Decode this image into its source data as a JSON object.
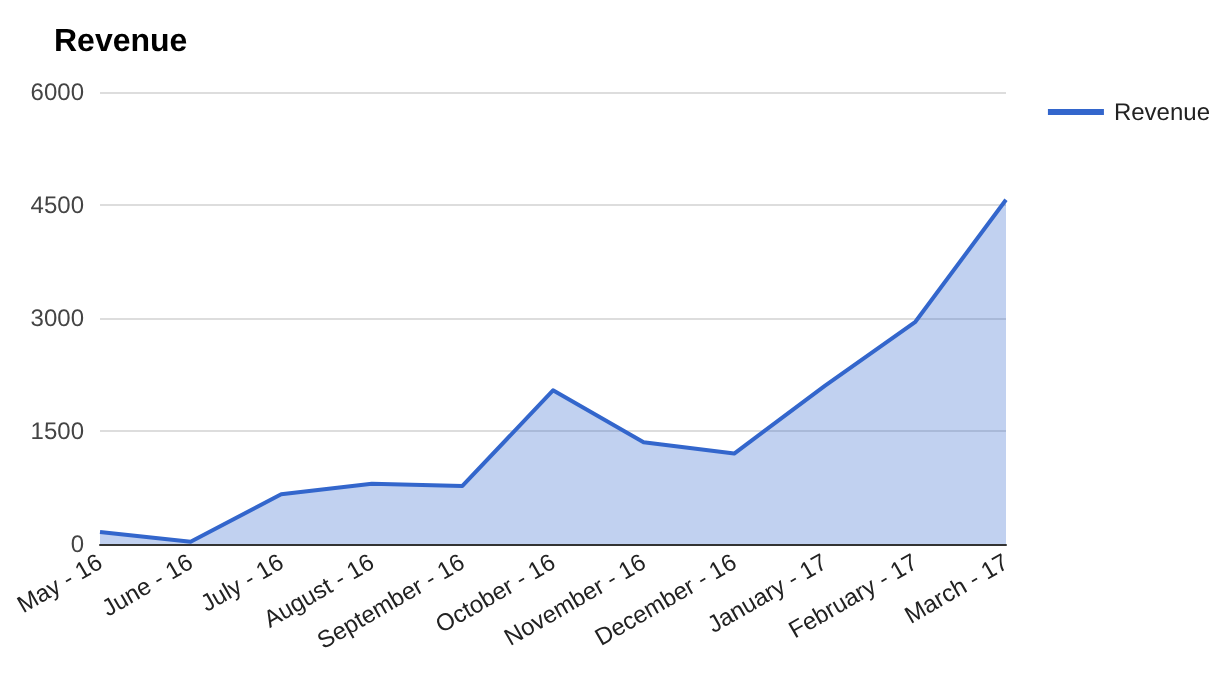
{
  "chart_data": {
    "type": "area",
    "title": "Revenue",
    "categories": [
      "May - 16",
      "June - 16",
      "July - 16",
      "August - 16",
      "September - 16",
      "October - 16",
      "November - 16",
      "December - 16",
      "January - 17",
      "February - 17",
      "March - 17"
    ],
    "series": [
      {
        "name": "Revenue",
        "color": "#3366cc",
        "values": [
          160,
          30,
          660,
          800,
          770,
          2040,
          1350,
          1200,
          2100,
          2950,
          4570
        ]
      }
    ],
    "ylim": [
      0,
      6000
    ],
    "yticks": [
      0,
      1500,
      3000,
      4500,
      6000
    ],
    "grid": "y",
    "legend": "top right",
    "marker": "none",
    "line_style": "solid"
  }
}
